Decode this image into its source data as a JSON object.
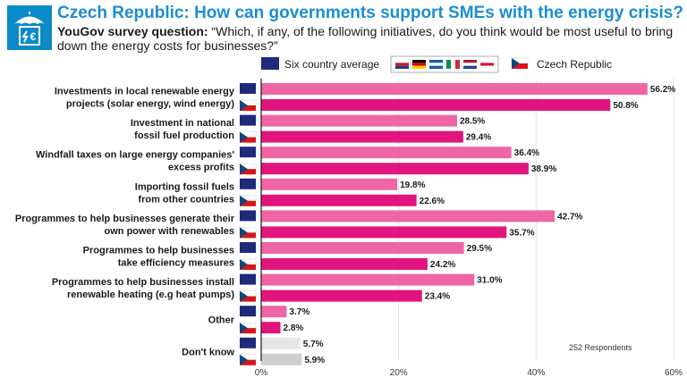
{
  "header": {
    "title": "Czech Republic: How can governments support SMEs with the energy crisis?",
    "question_lead": "YouGov survey question:",
    "question_text": " “Which, if any, of the following initiatives, do you think would be most useful to bring down the energy costs for businesses?”"
  },
  "logo": {
    "icon": "umbrella-euro-icon",
    "color": "#0a8ac8"
  },
  "legend": {
    "avg_label": "Six country average",
    "cz_label": "Czech Republic",
    "flags": [
      "czech-flag-icon",
      "germany-flag-icon",
      "greece-flag-icon",
      "italy-flag-icon",
      "netherlands-flag-icon",
      "poland-flag-icon"
    ]
  },
  "respondents_note": "252 Respondents",
  "colors": {
    "avg": "#ed66a6",
    "cz": "#e0167e",
    "dontknow_avg": "#e6e6e6",
    "dontknow_cz": "#cfcfcf",
    "title": "#1a8fd0",
    "flag_blue": "#1f2a7a",
    "flag_red": "#d7141a"
  },
  "chart_data": {
    "type": "bar",
    "orientation": "horizontal",
    "categories": [
      [
        "Investments in local renewable energy",
        "projects (solar energy, wind energy)"
      ],
      [
        "Investment in national",
        "fossil fuel production"
      ],
      [
        "Windfall taxes on large energy companies'",
        "excess profits"
      ],
      [
        "Importing fossil fuels",
        "from other countries"
      ],
      [
        "Programmes to help businesses generate their",
        "own power with renewables"
      ],
      [
        "Programmes to help businesses",
        "take efficiency measures"
      ],
      [
        "Programmes to help businesses install",
        "renewable heating (e.g heat pumps)"
      ],
      [
        "Other"
      ],
      [
        "Don't know"
      ]
    ],
    "series": [
      {
        "name": "Six country average",
        "values": [
          56.2,
          28.5,
          36.4,
          19.8,
          42.7,
          29.5,
          31.0,
          3.7,
          5.7
        ]
      },
      {
        "name": "Czech Republic",
        "values": [
          50.8,
          29.4,
          38.9,
          22.6,
          35.7,
          24.2,
          23.4,
          2.8,
          5.9
        ]
      }
    ],
    "value_format": "%",
    "xlim": [
      0,
      60
    ],
    "xticks": [
      0,
      20,
      40,
      60
    ],
    "xtick_labels": [
      "0%",
      "20%",
      "40%",
      "60%"
    ],
    "grid": true
  }
}
